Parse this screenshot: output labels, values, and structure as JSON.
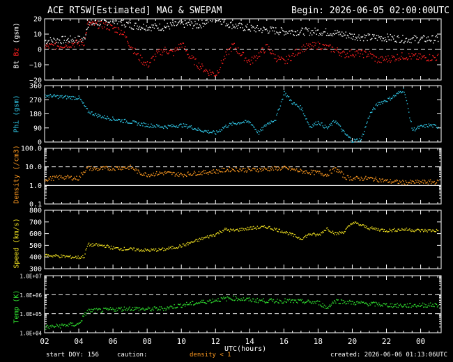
{
  "header": {
    "title": "ACE RTSW[Estimated] MAG & SWEPAM",
    "begin": "Begin: 2026-06-05 02:00:00UTC"
  },
  "footer": {
    "start_doy": "start DOY: 156",
    "caution_label": "caution:",
    "caution_value": "density < 1",
    "created": "created: 2026-06-06 01:13:06UTC"
  },
  "colors": {
    "bt": "#ffffff",
    "bz": "#ff2020",
    "phi": "#30c8e8",
    "density": "#ff9a20",
    "speed": "#f0e020",
    "temp": "#30e030"
  },
  "chart_data": [
    {
      "type": "scatter",
      "panel": "mag",
      "ylabel": [
        "Bt",
        "Bz",
        "(gsm)"
      ],
      "ylim": [
        -20,
        20
      ],
      "yticks": [
        "20",
        "10",
        "0",
        "−10",
        "−20"
      ],
      "series": [
        {
          "name": "Bt",
          "x": [
            2.0,
            4.3,
            4.5,
            5.5,
            6.0,
            7.0,
            8.0,
            9.0,
            10.0,
            11.0,
            11.5,
            12.0,
            12.5,
            13.0,
            14.0,
            15.0,
            16.0,
            17.0,
            18.0,
            19.0,
            20.0,
            21.0,
            22.0,
            23.0,
            24.0,
            25.0
          ],
          "values": [
            6,
            7,
            17,
            18,
            20,
            16,
            15,
            15,
            17,
            16,
            19,
            21,
            18,
            16,
            14,
            13,
            12,
            12,
            12,
            11,
            9,
            8,
            8,
            7,
            7,
            7
          ]
        },
        {
          "name": "Bz",
          "x": [
            2.0,
            3.0,
            4.3,
            4.5,
            5.5,
            6.5,
            7.0,
            7.5,
            8.0,
            8.5,
            9.0,
            9.5,
            10.0,
            10.5,
            11.0,
            11.5,
            12.0,
            12.5,
            13.0,
            13.5,
            14.0,
            14.5,
            15.0,
            15.5,
            16.0,
            17.0,
            18.0,
            19.0,
            19.5,
            20.0,
            21.0,
            21.5,
            22.0,
            23.0,
            24.0,
            25.0
          ],
          "values": [
            2,
            3,
            5,
            17,
            16,
            12,
            3,
            -5,
            -10,
            -3,
            0,
            -2,
            4,
            -5,
            -10,
            -14,
            -16,
            -5,
            3,
            -3,
            -8,
            -3,
            2,
            -5,
            -8,
            1,
            3,
            0,
            -3,
            -2,
            -3,
            -7,
            -6,
            -4,
            -5,
            -5
          ]
        }
      ]
    },
    {
      "type": "scatter",
      "panel": "phi",
      "ylabel": "Phi (gsm)",
      "ylim": [
        0,
        360
      ],
      "yticks": [
        "360",
        "270",
        "180",
        "90",
        "0"
      ],
      "series": [
        {
          "name": "Phi",
          "x": [
            2.0,
            3.0,
            4.0,
            4.5,
            5.0,
            5.5,
            6.0,
            7.0,
            8.0,
            9.0,
            10.0,
            10.5,
            11.0,
            11.5,
            12.0,
            12.5,
            13.0,
            13.5,
            14.0,
            14.5,
            15.0,
            15.5,
            16.0,
            16.5,
            17.0,
            17.5,
            18.0,
            18.5,
            19.0,
            19.5,
            20.0,
            20.5,
            21.0,
            21.5,
            22.0,
            22.5,
            23.0,
            23.5,
            24.0,
            24.5,
            25.0
          ],
          "values": [
            300,
            290,
            285,
            200,
            175,
            160,
            150,
            130,
            110,
            100,
            110,
            100,
            80,
            70,
            60,
            100,
            120,
            130,
            130,
            60,
            120,
            150,
            320,
            250,
            220,
            100,
            130,
            90,
            140,
            60,
            10,
            20,
            180,
            250,
            270,
            300,
            340,
            80,
            100,
            110,
            100
          ]
        }
      ]
    },
    {
      "type": "scatter",
      "panel": "density",
      "ylabel": "Density (/cm3)",
      "yscale": "log",
      "ylim": [
        0.1,
        100
      ],
      "yticks": [
        "100.0",
        "10.0",
        "1.0",
        "0.1"
      ],
      "series": [
        {
          "name": "Density",
          "x": [
            2.0,
            3.0,
            4.0,
            4.5,
            5.0,
            6.0,
            7.0,
            7.5,
            8.0,
            9.0,
            10.0,
            11.0,
            12.0,
            13.0,
            14.0,
            15.0,
            16.0,
            17.0,
            18.0,
            18.5,
            19.0,
            19.5,
            20.0,
            21.0,
            22.0,
            23.0,
            24.0,
            25.0
          ],
          "values": [
            2.2,
            3.0,
            2.5,
            9,
            8,
            9,
            10,
            5,
            4,
            5,
            4,
            5,
            6,
            8,
            7,
            8,
            9,
            6,
            5,
            4,
            8,
            3,
            2.5,
            2.5,
            1.8,
            1.5,
            1.6,
            1.6
          ]
        }
      ]
    },
    {
      "type": "scatter",
      "panel": "speed",
      "ylabel": "Speed (km/s)",
      "ylim": [
        300,
        800
      ],
      "yticks": [
        "800",
        "700",
        "600",
        "500",
        "400",
        "300"
      ],
      "series": [
        {
          "name": "Speed",
          "x": [
            2.0,
            3.0,
            4.0,
            4.3,
            4.5,
            5.5,
            6.0,
            7.0,
            8.0,
            9.0,
            10.0,
            11.0,
            12.0,
            12.5,
            13.0,
            14.0,
            15.0,
            16.0,
            17.0,
            17.5,
            18.0,
            18.5,
            19.0,
            19.5,
            20.0,
            21.0,
            22.0,
            23.0,
            24.0,
            25.0
          ],
          "values": [
            420,
            410,
            400,
            410,
            510,
            500,
            480,
            470,
            460,
            470,
            500,
            550,
            600,
            640,
            630,
            650,
            660,
            620,
            560,
            600,
            590,
            650,
            600,
            620,
            700,
            650,
            630,
            640,
            630,
            630
          ]
        }
      ]
    },
    {
      "type": "scatter",
      "panel": "temp",
      "ylabel": "Temp (K)",
      "yscale": "log",
      "ylim": [
        10000,
        10000000
      ],
      "yticks": [
        "1.0E+07",
        "1.0E+06",
        "1.0E+05",
        "1.0E+04"
      ],
      "xlabel": "UTC(hours)",
      "xticks": [
        "02",
        "04",
        "06",
        "08",
        "10",
        "12",
        "14",
        "16",
        "18",
        "20",
        "22",
        "00"
      ],
      "series": [
        {
          "name": "Temp",
          "x": [
            2.0,
            3.0,
            4.0,
            4.3,
            4.5,
            5.5,
            6.0,
            7.0,
            8.0,
            9.0,
            10.0,
            11.0,
            12.0,
            13.0,
            14.0,
            15.0,
            16.0,
            17.0,
            18.0,
            18.5,
            19.0,
            20.0,
            21.0,
            22.0,
            23.0,
            24.0,
            25.0
          ],
          "values": [
            20000,
            25000,
            30000,
            80000,
            150000,
            160000,
            180000,
            200000,
            180000,
            200000,
            300000,
            400000,
            550000,
            700000,
            550000,
            500000,
            500000,
            450000,
            400000,
            200000,
            500000,
            400000,
            350000,
            300000,
            280000,
            300000,
            300000
          ]
        }
      ]
    }
  ]
}
